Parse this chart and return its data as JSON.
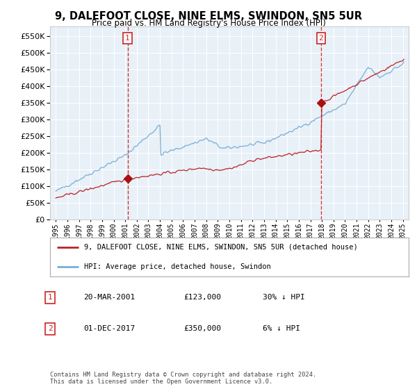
{
  "title": "9, DALEFOOT CLOSE, NINE ELMS, SWINDON, SN5 5UR",
  "subtitle": "Price paid vs. HM Land Registry's House Price Index (HPI)",
  "legend_entry1": "9, DALEFOOT CLOSE, NINE ELMS, SWINDON, SN5 5UR (detached house)",
  "legend_entry2": "HPI: Average price, detached house, Swindon",
  "transaction1_date": "20-MAR-2001",
  "transaction1_price": "£123,000",
  "transaction1_hpi": "30% ↓ HPI",
  "transaction2_date": "01-DEC-2017",
  "transaction2_price": "£350,000",
  "transaction2_hpi": "6% ↓ HPI",
  "copyright": "Contains HM Land Registry data © Crown copyright and database right 2024.\nThis data is licensed under the Open Government Licence v3.0.",
  "hpi_color": "#7aadd4",
  "price_color": "#bb2222",
  "vline_color": "#cc2222",
  "marker_color": "#aa1111",
  "background_color": "#ffffff",
  "plot_bg_color": "#e8f0f8",
  "grid_color": "#ffffff",
  "ylim_min": 0,
  "ylim_max": 580000,
  "transaction1_year": 2001.2,
  "transaction2_year": 2017.92,
  "transaction1_value": 123000,
  "transaction2_value": 350000
}
